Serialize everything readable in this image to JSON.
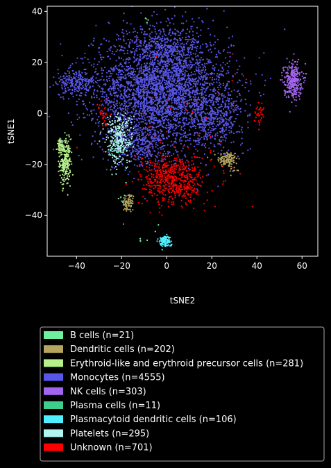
{
  "chart_data": {
    "type": "scatter",
    "xlabel": "tSNE2",
    "ylabel": "tSNE1",
    "xlim": [
      -53,
      67
    ],
    "ylim": [
      -56,
      42
    ],
    "xticks": [
      -40,
      -20,
      0,
      20,
      40,
      60
    ],
    "yticks": [
      -40,
      -20,
      0,
      20,
      40
    ],
    "xtick_labels": [
      "−40",
      "−20",
      "0",
      "20",
      "40",
      "60"
    ],
    "ytick_labels": [
      "−40",
      "−20",
      "0",
      "20",
      "40"
    ],
    "grid": false,
    "legend_position": "below",
    "background": "#000000",
    "series": [
      {
        "name": "B cells (n=21)",
        "color": "#6ef0a0",
        "n": 21,
        "clusters": [
          {
            "cx": -12,
            "cy": -49,
            "sx": 1.2,
            "sy": 1.0,
            "share": 0.2
          },
          {
            "cx": -5,
            "cy": -45,
            "sx": 1.0,
            "sy": 1.0,
            "share": 0.1
          },
          {
            "cx": -20,
            "cy": -34,
            "sx": 1.0,
            "sy": 1.2,
            "share": 0.2
          },
          {
            "cx": -25,
            "cy": -15,
            "sx": 2.0,
            "sy": 2.5,
            "share": 0.3
          },
          {
            "cx": -9,
            "cy": 37,
            "sx": 0.8,
            "sy": 0.8,
            "share": 0.2
          }
        ]
      },
      {
        "name": "Dendritic cells (n=202)",
        "color": "#b5a55f",
        "n": 202,
        "clusters": [
          {
            "cx": 27,
            "cy": -18,
            "sx": 2.2,
            "sy": 1.6,
            "share": 0.55
          },
          {
            "cx": -17,
            "cy": -35,
            "sx": 1.4,
            "sy": 2.0,
            "share": 0.4
          },
          {
            "cx": 30,
            "cy": -22,
            "sx": 1.0,
            "sy": 1.0,
            "share": 0.05
          }
        ]
      },
      {
        "name": "Erythroid-like and erythroid precursor cells (n=281)",
        "color": "#b6f08a",
        "n": 281,
        "clusters": [
          {
            "cx": -45,
            "cy": -19,
            "sx": 1.2,
            "sy": 4.5,
            "share": 0.8
          },
          {
            "cx": -47,
            "cy": -13,
            "sx": 0.8,
            "sy": 1.5,
            "share": 0.2
          }
        ]
      },
      {
        "name": "Monocytes (n=4555)",
        "color": "#5856e6",
        "n": 4555,
        "clusters": [
          {
            "cx": -2,
            "cy": 9,
            "sx": 15,
            "sy": 11,
            "share": 0.75
          },
          {
            "cx": -40,
            "cy": 12,
            "sx": 4.5,
            "sy": 2.5,
            "share": 0.05
          },
          {
            "cx": 22,
            "cy": -2,
            "sx": 6,
            "sy": 5,
            "share": 0.08
          },
          {
            "cx": -12,
            "cy": -12,
            "sx": 6,
            "sy": 5,
            "share": 0.07
          },
          {
            "cx": 0,
            "cy": 27,
            "sx": 8,
            "sy": 4,
            "share": 0.05
          }
        ]
      },
      {
        "name": "NK cells (n=303)",
        "color": "#a265ef",
        "n": 303,
        "clusters": [
          {
            "cx": 56,
            "cy": 13,
            "sx": 2.0,
            "sy": 3.5,
            "share": 1.0
          }
        ]
      },
      {
        "name": "Plasma cells (n=11)",
        "color": "#3ecf8e",
        "n": 11,
        "clusters": [
          {
            "cx": -23,
            "cy": -13,
            "sx": 2.5,
            "sy": 3.0,
            "share": 1.0
          }
        ]
      },
      {
        "name": "Plasmacytoid dendritic cells (n=106)",
        "color": "#4eefff",
        "n": 106,
        "clusters": [
          {
            "cx": -1,
            "cy": -50,
            "sx": 1.4,
            "sy": 1.1,
            "share": 1.0
          }
        ]
      },
      {
        "name": "Platelets (n=295)",
        "color": "#b0f5f0",
        "n": 295,
        "clusters": [
          {
            "cx": -21,
            "cy": -10,
            "sx": 3.0,
            "sy": 5.0,
            "share": 1.0
          }
        ]
      },
      {
        "name": "Unknown (n=701)",
        "color": "#ff0000",
        "n": 701,
        "clusters": [
          {
            "cx": 3,
            "cy": -26,
            "sx": 7,
            "sy": 5,
            "share": 0.85
          },
          {
            "cx": 41,
            "cy": 0,
            "sx": 1.0,
            "sy": 2.2,
            "share": 0.05
          },
          {
            "cx": -28,
            "cy": 0,
            "sx": 1.2,
            "sy": 3.0,
            "share": 0.04
          },
          {
            "cx": 8,
            "cy": 0,
            "sx": 18,
            "sy": 15,
            "share": 0.06
          }
        ]
      }
    ]
  }
}
